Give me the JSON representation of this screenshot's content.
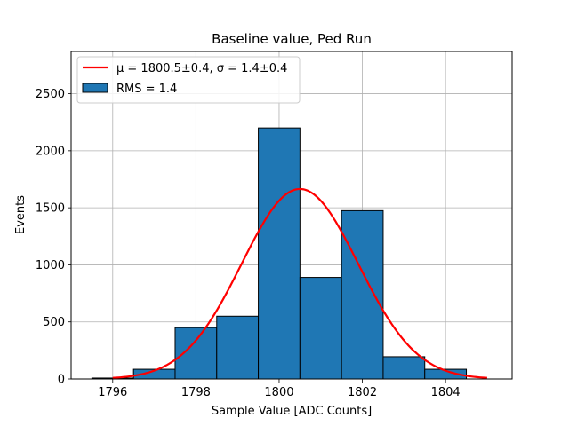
{
  "chart_data": {
    "type": "bar",
    "title": "Baseline value, Ped Run",
    "xlabel": "Sample Value [ADC Counts]",
    "ylabel": "Events",
    "xlim": [
      1795.0,
      1805.6
    ],
    "ylim": [
      0,
      2870
    ],
    "grid": true,
    "xticks": [
      1796,
      1798,
      1800,
      1802,
      1804
    ],
    "yticks": [
      0,
      500,
      1000,
      1500,
      2000,
      2500
    ],
    "histogram": {
      "name": "RMS = 1.4",
      "color": "#1f77b4",
      "edge_color": "#000000",
      "bins": [
        {
          "x0": 1795.5,
          "x1": 1796.5,
          "count": 8
        },
        {
          "x0": 1796.5,
          "x1": 1797.5,
          "count": 85
        },
        {
          "x0": 1797.5,
          "x1": 1798.5,
          "count": 450
        },
        {
          "x0": 1798.5,
          "x1": 1799.5,
          "count": 550
        },
        {
          "x0": 1799.5,
          "x1": 1800.5,
          "count": 2200
        },
        {
          "x0": 1800.5,
          "x1": 1801.5,
          "count": 890
        },
        {
          "x0": 1801.5,
          "x1": 1802.5,
          "count": 1475
        },
        {
          "x0": 1802.5,
          "x1": 1803.5,
          "count": 195
        },
        {
          "x0": 1803.5,
          "x1": 1804.5,
          "count": 85
        }
      ]
    },
    "fit": {
      "type": "gaussian",
      "label": "μ = 1800.5±0.4, σ = 1.4±0.4",
      "color": "#ff0000",
      "mu": 1800.5,
      "sigma": 1.4,
      "amplitude": 1665,
      "x_range": [
        1796.0,
        1805.0
      ]
    },
    "legend": {
      "position": "upper-left",
      "entries": [
        {
          "name": "fit",
          "text": "μ = 1800.5±0.4, σ = 1.4±0.4"
        },
        {
          "name": "histogram",
          "text": "RMS = 1.4"
        }
      ]
    }
  }
}
